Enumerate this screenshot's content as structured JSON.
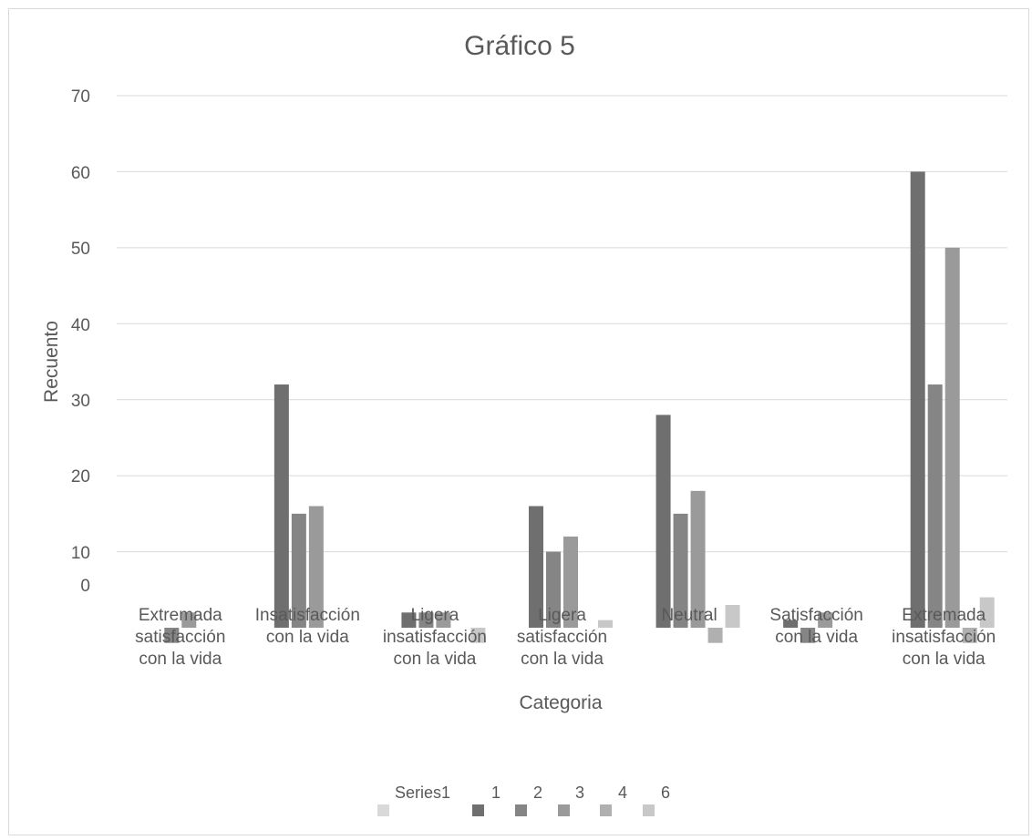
{
  "chart_data": {
    "type": "bar",
    "title": "Gráfico 5",
    "xlabel": "Categoria",
    "ylabel": "Recuento",
    "ylim": [
      -10,
      70
    ],
    "yticks": [
      "70",
      "60",
      "50",
      "40",
      "30",
      "20",
      "10",
      "0"
    ],
    "grid": true,
    "legend_position": "bottom",
    "categories": [
      [
        "Extremada",
        "satisfacción",
        "con la vida"
      ],
      [
        "Insatisfacción",
        "con la vida"
      ],
      [
        "Ligera",
        "insatisfacción",
        "con la vida"
      ],
      [
        "Ligera",
        "satisfacción",
        "con la vida"
      ],
      [
        "Neutral"
      ],
      [
        "Satisfacción",
        "con la vida"
      ],
      [
        "Extremada",
        "insatisfacción",
        "con la vida"
      ]
    ],
    "series": [
      {
        "name": "Series1",
        "color": "#d9d9d9",
        "values": [
          0,
          0,
          0,
          0,
          0,
          0,
          0
        ]
      },
      {
        "name": "1",
        "color": "#6f6f6f",
        "values": [
          0,
          32,
          2,
          16,
          28,
          1,
          60
        ]
      },
      {
        "name": "2",
        "color": "#858585",
        "values": [
          -2,
          15,
          2,
          10,
          15,
          -2,
          32
        ]
      },
      {
        "name": "3",
        "color": "#9a9a9a",
        "values": [
          2,
          16,
          2,
          12,
          18,
          2,
          50
        ]
      },
      {
        "name": "4",
        "color": "#b0b0b0",
        "values": [
          0,
          0,
          0,
          0,
          -2,
          0,
          -2
        ]
      },
      {
        "name": "6",
        "color": "#c8c8c8",
        "values": [
          0,
          0,
          -2,
          1,
          3,
          0,
          4
        ]
      }
    ]
  }
}
